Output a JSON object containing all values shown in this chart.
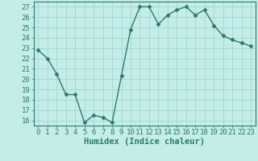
{
  "x": [
    0,
    1,
    2,
    3,
    4,
    5,
    6,
    7,
    8,
    9,
    10,
    11,
    12,
    13,
    14,
    15,
    16,
    17,
    18,
    19,
    20,
    21,
    22,
    23
  ],
  "y": [
    22.8,
    22.0,
    20.5,
    18.5,
    18.5,
    15.8,
    16.5,
    16.3,
    15.8,
    20.3,
    24.8,
    27.0,
    27.0,
    25.3,
    26.2,
    26.7,
    27.0,
    26.2,
    26.7,
    25.2,
    24.2,
    23.8,
    23.5,
    23.2
  ],
  "line_color": "#2d7a6b",
  "marker": "D",
  "marker_size": 2.5,
  "bg_color": "#c5ede7",
  "grid_color": "#9fd8d0",
  "xlabel": "Humidex (Indice chaleur)",
  "xlim": [
    -0.5,
    23.5
  ],
  "ylim": [
    15.5,
    27.5
  ],
  "yticks": [
    16,
    17,
    18,
    19,
    20,
    21,
    22,
    23,
    24,
    25,
    26,
    27
  ],
  "xticks": [
    0,
    1,
    2,
    3,
    4,
    5,
    6,
    7,
    8,
    9,
    10,
    11,
    12,
    13,
    14,
    15,
    16,
    17,
    18,
    19,
    20,
    21,
    22,
    23
  ],
  "tick_color": "#2d7a6b",
  "xlabel_fontsize": 7.5,
  "tick_fontsize": 6.5,
  "spine_color": "#2d7a6b",
  "linewidth": 1.0
}
